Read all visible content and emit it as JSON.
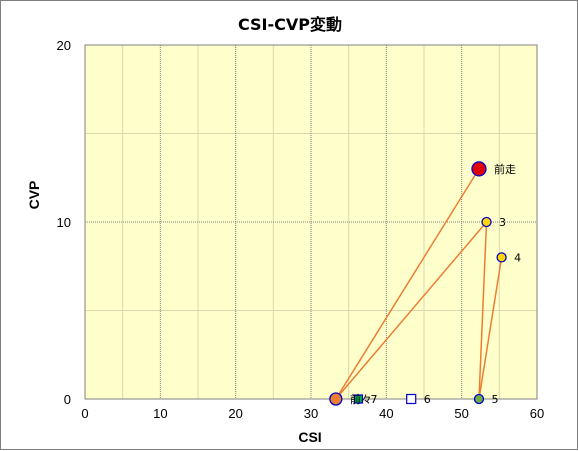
{
  "chart_data": {
    "type": "scatter",
    "title": "CSI-CVP変動",
    "xlabel": "CSI",
    "ylabel": "CVP",
    "xlim": [
      0,
      60
    ],
    "ylim": [
      0,
      20
    ],
    "x_ticks": [
      0,
      10,
      20,
      30,
      40,
      50,
      60
    ],
    "y_ticks": [
      0,
      10,
      20
    ],
    "grid": true,
    "points": [
      {
        "label": "前走",
        "x": 52.3,
        "y": 13,
        "marker": "circle",
        "fill": "#e00000",
        "stroke": "#0000cc",
        "size": 7
      },
      {
        "label": "3",
        "x": 53.3,
        "y": 10,
        "marker": "circle",
        "fill": "#ffd700",
        "stroke": "#0000cc",
        "size": 4.5
      },
      {
        "label": "4",
        "x": 55.3,
        "y": 8,
        "marker": "circle",
        "fill": "#ffd700",
        "stroke": "#0000cc",
        "size": 4.5
      },
      {
        "label": "5",
        "x": 52.3,
        "y": 0,
        "marker": "circle",
        "fill": "#70ad47",
        "stroke": "#0000cc",
        "size": 4.5
      },
      {
        "label": "6",
        "x": 43.3,
        "y": 0,
        "marker": "square",
        "fill": "#ffffff",
        "stroke": "#0000cc",
        "size": 4.5
      },
      {
        "label": "7",
        "x": 36.3,
        "y": 0,
        "marker": "square",
        "fill": "#00b050",
        "stroke": "#0000cc",
        "size": 4
      },
      {
        "label": "前々",
        "x": 33.3,
        "y": 0,
        "marker": "circle",
        "fill": "#ed7d31",
        "stroke": "#0000cc",
        "size": 6
      }
    ],
    "line_color": "#ed7d31",
    "line_x": [
      52.3,
      33.3,
      53.3,
      52.3,
      55.3
    ],
    "line_y": [
      13,
      0,
      10,
      0,
      8
    ],
    "plot_bg": "#ffffcc"
  }
}
